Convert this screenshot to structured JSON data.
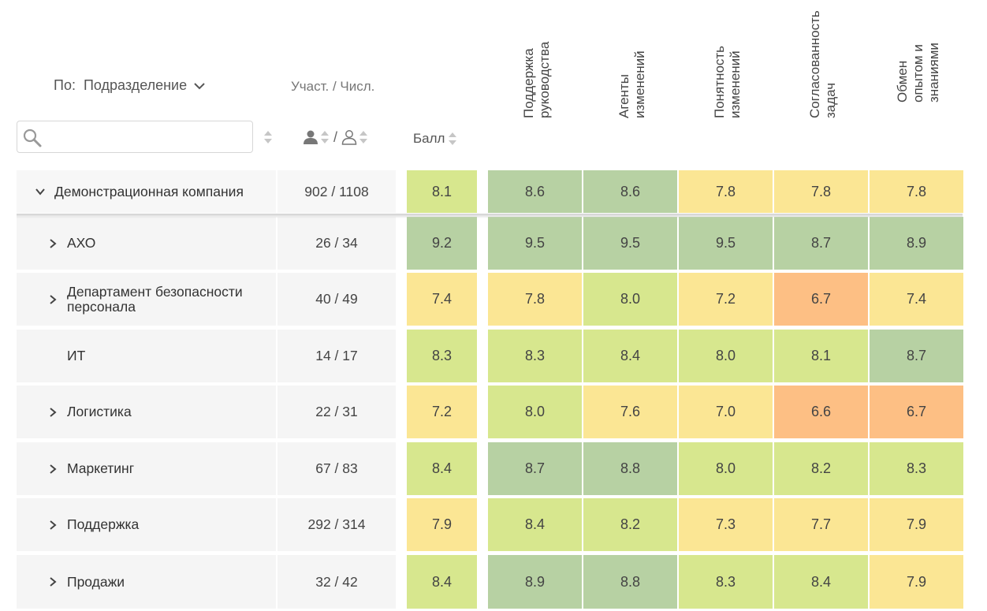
{
  "header": {
    "group_by_label": "По:",
    "group_by_value": "Подразделение",
    "participants_label": "Участ. / Числ.",
    "participants_slash": "/",
    "score_label": "Балл",
    "search": {
      "value": "",
      "placeholder": ""
    }
  },
  "columns": [
    {
      "lines": [
        "Поддержка",
        "руководства"
      ]
    },
    {
      "lines": [
        "Агенты",
        "изменений"
      ]
    },
    {
      "lines": [
        "Понятность",
        "изменений"
      ]
    },
    {
      "lines": [
        "Согласованность",
        "задач"
      ]
    },
    {
      "lines": [
        "Обмен",
        "опытом и",
        "знаниями"
      ]
    }
  ],
  "colors": {
    "dark_green": "#b7d1a3",
    "light_green": "#d7e78e",
    "yellow": "#fbe694",
    "orange": "#fdbf84"
  },
  "rows": [
    {
      "name": "Демонстрационная компания",
      "expanded": true,
      "counts": "902 / 1108",
      "score": "8.1",
      "score_color": "#d7e78e",
      "values": [
        "8.6",
        "8.6",
        "7.8",
        "7.8",
        "7.8"
      ],
      "colors": [
        "#b7d1a3",
        "#b7d1a3",
        "#fbe694",
        "#fbe694",
        "#fbe694"
      ]
    },
    {
      "name": "АХО",
      "expandable": true,
      "counts": "26 / 34",
      "score": "9.2",
      "score_color": "#b7d1a3",
      "values": [
        "9.5",
        "9.5",
        "9.5",
        "8.7",
        "8.9"
      ],
      "colors": [
        "#b7d1a3",
        "#b7d1a3",
        "#b7d1a3",
        "#b7d1a3",
        "#b7d1a3"
      ]
    },
    {
      "name": "Департамент безопасности персонала",
      "expandable": true,
      "counts": "40 / 49",
      "score": "7.4",
      "score_color": "#fbe694",
      "values": [
        "7.8",
        "8.0",
        "7.2",
        "6.7",
        "7.4"
      ],
      "colors": [
        "#fbe694",
        "#d7e78e",
        "#fbe694",
        "#fdbf84",
        "#fbe694"
      ]
    },
    {
      "name": "ИТ",
      "expandable": false,
      "counts": "14 / 17",
      "score": "8.3",
      "score_color": "#d7e78e",
      "values": [
        "8.3",
        "8.4",
        "8.0",
        "8.1",
        "8.7"
      ],
      "colors": [
        "#d7e78e",
        "#d7e78e",
        "#d7e78e",
        "#d7e78e",
        "#b7d1a3"
      ]
    },
    {
      "name": "Логистика",
      "expandable": true,
      "counts": "22 / 31",
      "score": "7.2",
      "score_color": "#fbe694",
      "values": [
        "8.0",
        "7.6",
        "7.0",
        "6.6",
        "6.7"
      ],
      "colors": [
        "#d7e78e",
        "#fbe694",
        "#fbe694",
        "#fdbf84",
        "#fdbf84"
      ]
    },
    {
      "name": "Маркетинг",
      "expandable": true,
      "counts": "67 / 83",
      "score": "8.4",
      "score_color": "#d7e78e",
      "values": [
        "8.7",
        "8.8",
        "8.0",
        "8.2",
        "8.3"
      ],
      "colors": [
        "#b7d1a3",
        "#b7d1a3",
        "#d7e78e",
        "#d7e78e",
        "#d7e78e"
      ]
    },
    {
      "name": "Поддержка",
      "expandable": true,
      "counts": "292 / 314",
      "score": "7.9",
      "score_color": "#fbe694",
      "values": [
        "8.4",
        "8.2",
        "7.3",
        "7.7",
        "7.9"
      ],
      "colors": [
        "#d7e78e",
        "#d7e78e",
        "#fbe694",
        "#fbe694",
        "#fbe694"
      ]
    },
    {
      "name": "Продажи",
      "expandable": true,
      "counts": "32 / 42",
      "score": "8.4",
      "score_color": "#d7e78e",
      "values": [
        "8.9",
        "8.8",
        "8.3",
        "8.4",
        "7.9"
      ],
      "colors": [
        "#b7d1a3",
        "#b7d1a3",
        "#d7e78e",
        "#d7e78e",
        "#fbe694"
      ]
    }
  ]
}
